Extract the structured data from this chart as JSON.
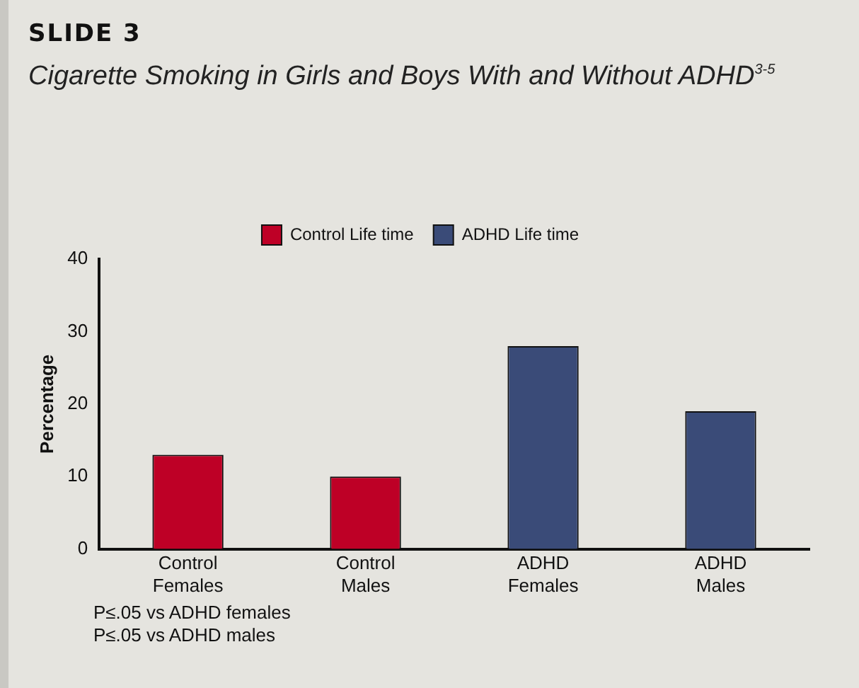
{
  "chart_data": {
    "type": "bar",
    "title": "SLIDE 3",
    "subtitle": "Cigarette Smoking in Girls and Boys With and Without ADHD$^{3-5}$",
    "ylabel": "Percentage",
    "categories": [
      "Control Females",
      "Control Males",
      "ADHD Females",
      "ADHD Males"
    ],
    "series": [
      {
        "name": "Control Life time",
        "color": "#be0026",
        "values": [
          13,
          10,
          null,
          null
        ]
      },
      {
        "name": "ADHD Life time",
        "color": "#3a4b78",
        "values": [
          null,
          null,
          28,
          19
        ]
      }
    ],
    "ylim": [
      0,
      40
    ],
    "yticks": [
      0,
      10,
      20,
      30,
      40
    ],
    "grid": false,
    "legend": "top",
    "annotations": [
      "P≤.05 vs ADHD females",
      "P≤.05 vs ADHD males"
    ]
  }
}
